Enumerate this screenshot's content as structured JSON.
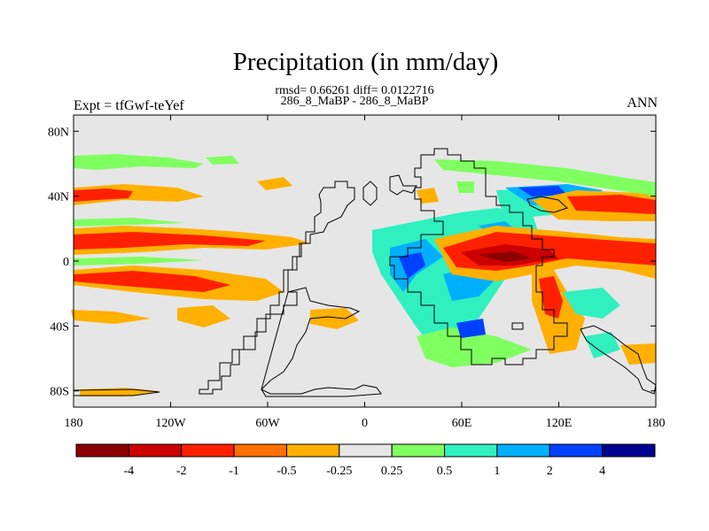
{
  "header": {
    "title": "Precipitation (in mm/day)",
    "stats": "rmsd= 0.66261 diff= 0.0122716",
    "case": "286_8_MaBP - 286_8_MaBP",
    "expt": "Expt = tfGwf-teYef",
    "season": "ANN"
  },
  "map": {
    "lon_range": [
      -180,
      180
    ],
    "lat_range": [
      -90,
      90
    ],
    "lon_ticks": [
      {
        "value": -180,
        "label": "180"
      },
      {
        "value": -120,
        "label": "120W"
      },
      {
        "value": -60,
        "label": "60W"
      },
      {
        "value": 0,
        "label": "0"
      },
      {
        "value": 60,
        "label": "60E"
      },
      {
        "value": 120,
        "label": "120E"
      },
      {
        "value": 180,
        "label": "180"
      }
    ],
    "lat_ticks": [
      {
        "value": 80,
        "label": "80N"
      },
      {
        "value": 40,
        "label": "40N"
      },
      {
        "value": 0,
        "label": "0"
      },
      {
        "value": -40,
        "label": "40S"
      },
      {
        "value": -80,
        "label": "80S"
      }
    ],
    "background_color": "#e6e6e6",
    "coast_color": "#000000"
  },
  "colorbar": {
    "labels": [
      "-4",
      "-2",
      "-1",
      "-0.5",
      "-0.25",
      "0.25",
      "0.5",
      "1",
      "2",
      "4"
    ],
    "colors": [
      "#8b0000",
      "#cc0000",
      "#ff2000",
      "#ff7000",
      "#ffb000",
      "#e6e6e6",
      "#80ff60",
      "#30f0c0",
      "#00b0ff",
      "#0040ff",
      "#000090"
    ]
  }
}
